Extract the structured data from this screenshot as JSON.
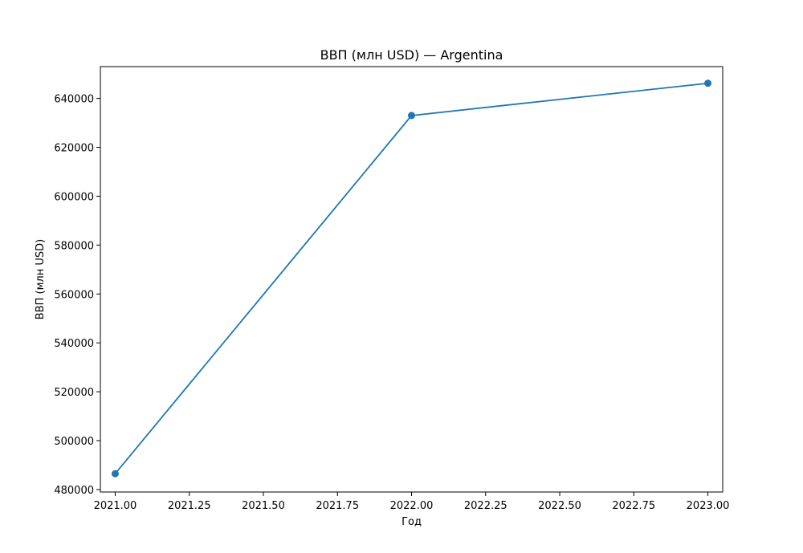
{
  "chart_data": {
    "type": "line",
    "title": "ВВП (млн USD) — Argentina",
    "xlabel": "Год",
    "ylabel": "ВВП (млн USD)",
    "xlim": [
      2020.95,
      2023.05
    ],
    "ylim": [
      479000,
      653000
    ],
    "x_ticks": [
      2021.0,
      2021.25,
      2021.5,
      2021.75,
      2022.0,
      2022.25,
      2022.5,
      2022.75,
      2023.0
    ],
    "x_tick_labels": [
      "2021.00",
      "2021.25",
      "2021.50",
      "2021.75",
      "2022.00",
      "2022.25",
      "2022.50",
      "2022.75",
      "2023.00"
    ],
    "y_ticks": [
      480000,
      500000,
      520000,
      540000,
      560000,
      580000,
      600000,
      620000,
      640000
    ],
    "y_tick_labels": [
      "480000",
      "500000",
      "520000",
      "540000",
      "560000",
      "580000",
      "600000",
      "620000",
      "640000"
    ],
    "grid": false,
    "series": [
      {
        "x": [
          2021,
          2022,
          2023
        ],
        "values": [
          486500,
          633000,
          646200
        ],
        "color": "#1f77b4",
        "marker": "circle"
      }
    ]
  }
}
